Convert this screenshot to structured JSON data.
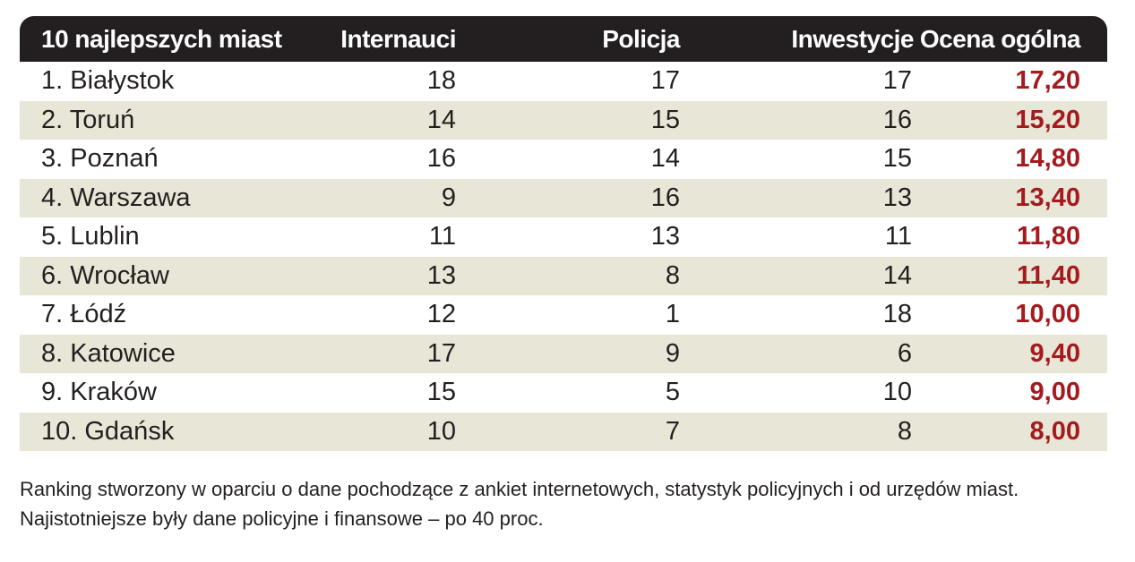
{
  "chart_data": {
    "type": "table",
    "columns": [
      "10 najlepszych miast",
      "Internauci",
      "Policja",
      "Inwestycje",
      "Ocena ogólna"
    ],
    "rows": [
      {
        "name": "1. Białystok",
        "internauci": "18",
        "policja": "17",
        "inwestycje": "17",
        "ocena": "17,20"
      },
      {
        "name": "2. Toruń",
        "internauci": "14",
        "policja": "15",
        "inwestycje": "16",
        "ocena": "15,20"
      },
      {
        "name": "3. Poznań",
        "internauci": "16",
        "policja": "14",
        "inwestycje": "15",
        "ocena": "14,80"
      },
      {
        "name": "4. Warszawa",
        "internauci": "9",
        "policja": "16",
        "inwestycje": "13",
        "ocena": "13,40"
      },
      {
        "name": "5. Lublin",
        "internauci": "11",
        "policja": "13",
        "inwestycje": "11",
        "ocena": "11,80"
      },
      {
        "name": "6. Wrocław",
        "internauci": "13",
        "policja": "8",
        "inwestycje": "14",
        "ocena": "11,40"
      },
      {
        "name": "7. Łódź",
        "internauci": "12",
        "policja": "1",
        "inwestycje": "18",
        "ocena": "10,00"
      },
      {
        "name": "8. Katowice",
        "internauci": "17",
        "policja": "9",
        "inwestycje": "6",
        "ocena": "9,40"
      },
      {
        "name": "9. Kraków",
        "internauci": "15",
        "policja": "5",
        "inwestycje": "10",
        "ocena": "9,00"
      },
      {
        "name": "10. Gdańsk",
        "internauci": "10",
        "policja": "7",
        "inwestycje": "8",
        "ocena": "8,00"
      }
    ],
    "footnote": "Ranking stworzony w oparciu o dane pochodzące z ankiet internetowych, statystyk policyjnych i od urzędów miast. Najistotniejsze były dane policyjne i finansowe – po 40 proc."
  },
  "colors": {
    "header_bg": "#231f20",
    "header_text": "#ffffff",
    "shaded_row": "#e8e6d6",
    "score_text": "#a51a1f",
    "body_text": "#231f20"
  }
}
